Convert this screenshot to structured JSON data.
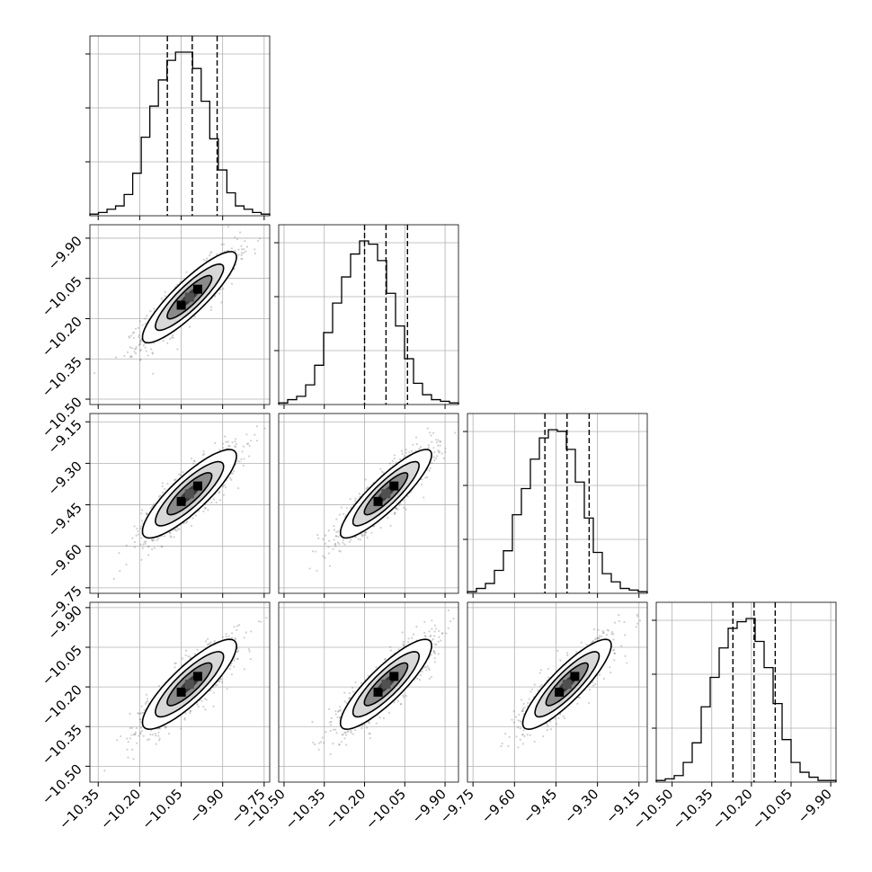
{
  "chart_data": {
    "type": "corner",
    "grid": true,
    "variables": 4,
    "axis_ranges": [
      [
        -10.38,
        -9.73
      ],
      [
        -10.52,
        -9.85
      ],
      [
        -9.77,
        -9.12
      ],
      [
        -10.56,
        -9.88
      ]
    ],
    "x_ticks": [
      [
        "−10.35",
        "−10.20",
        "−10.05",
        "−9.90",
        "−9.75"
      ],
      [
        "−10.50",
        "−10.35",
        "−10.20",
        "−10.05",
        "−9.90"
      ],
      [
        "−9.75",
        "−9.60",
        "−9.45",
        "−9.30",
        "−9.15"
      ],
      [
        "−10.50",
        "−10.35",
        "−10.20",
        "−10.05",
        "−9.90"
      ]
    ],
    "y_ticks": {
      "row2": [
        "−9.90",
        "−10.05",
        "−10.20",
        "−10.35",
        "−10.50"
      ],
      "row3": [
        "−9.15",
        "−9.30",
        "−9.45",
        "−9.60",
        "−9.75"
      ],
      "row4": [
        "−9.90",
        "−10.05",
        "−10.20",
        "−10.35",
        "−10.50"
      ]
    },
    "quantiles": [
      [
        -10.1,
        -10.01,
        -9.92
      ],
      [
        -10.2,
        -10.12,
        -10.04
      ],
      [
        -9.49,
        -9.41,
        -9.33
      ],
      [
        -10.27,
        -10.19,
        -10.11
      ]
    ],
    "histograms": [
      {
        "variable": 1,
        "edges": [
          -10.38,
          -9.73
        ],
        "counts": [
          1,
          2,
          4,
          6,
          13,
          26,
          48,
          67,
          83,
          95,
          100,
          100,
          90,
          70,
          47,
          28,
          14,
          6,
          4,
          2,
          1
        ]
      },
      {
        "variable": 2,
        "edges": [
          -10.52,
          -9.85
        ],
        "counts": [
          1,
          3,
          5,
          12,
          24,
          44,
          62,
          78,
          92,
          100,
          98,
          88,
          68,
          48,
          28,
          13,
          6,
          3,
          2,
          1
        ]
      },
      {
        "variable": 3,
        "edges": [
          -9.77,
          -9.12
        ],
        "counts": [
          1,
          3,
          6,
          14,
          26,
          48,
          64,
          82,
          95,
          100,
          99,
          88,
          68,
          46,
          25,
          12,
          7,
          3,
          2,
          1
        ]
      },
      {
        "variable": 4,
        "edges": [
          -10.56,
          -9.88
        ],
        "counts": [
          1,
          2,
          4,
          12,
          24,
          46,
          64,
          82,
          94,
          98,
          100,
          86,
          70,
          48,
          26,
          12,
          6,
          3,
          1,
          1
        ]
      }
    ],
    "joint": [
      {
        "row": 2,
        "col": 1,
        "center": [
          -10.02,
          -10.12
        ],
        "sd": [
          0.085,
          0.085
        ],
        "rho": 0.88
      },
      {
        "row": 3,
        "col": 1,
        "center": [
          -10.02,
          -9.41
        ],
        "sd": [
          0.085,
          0.08
        ],
        "rho": 0.85
      },
      {
        "row": 3,
        "col": 2,
        "center": [
          -10.12,
          -9.41
        ],
        "sd": [
          0.085,
          0.08
        ],
        "rho": 0.88
      },
      {
        "row": 4,
        "col": 1,
        "center": [
          -10.02,
          -10.19
        ],
        "sd": [
          0.085,
          0.085
        ],
        "rho": 0.85
      },
      {
        "row": 4,
        "col": 2,
        "center": [
          -10.12,
          -10.19
        ],
        "sd": [
          0.085,
          0.085
        ],
        "rho": 0.86
      },
      {
        "row": 4,
        "col": 3,
        "center": [
          -9.41,
          -10.19
        ],
        "sd": [
          0.08,
          0.085
        ],
        "rho": 0.87
      }
    ]
  }
}
